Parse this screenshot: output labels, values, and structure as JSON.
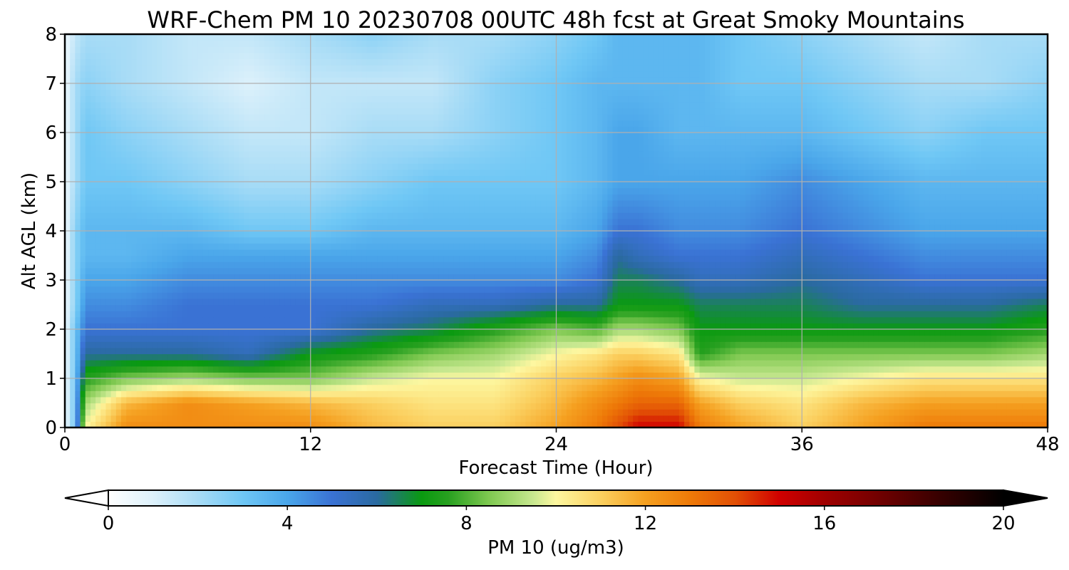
{
  "chart_data": {
    "type": "heatmap",
    "title": "WRF-Chem PM 10  20230708 00UTC 48h fcst at Great Smoky Mountains",
    "xlabel": "Forecast Time (Hour)",
    "ylabel": "Alt AGL (km)",
    "xlim": [
      0,
      48
    ],
    "ylim": [
      0,
      8
    ],
    "x_ticks": [
      0,
      12,
      24,
      36,
      48
    ],
    "y_ticks": [
      0,
      1,
      2,
      3,
      4,
      5,
      6,
      7,
      8
    ],
    "grid": true,
    "x_hours": [
      0,
      0.5,
      1,
      3,
      6,
      9,
      12,
      15,
      18,
      21,
      24,
      26,
      27,
      28,
      30,
      31,
      33,
      36,
      39,
      42,
      45,
      48
    ],
    "y_km": [
      0,
      0.5,
      1,
      1.5,
      2,
      2.5,
      3,
      3.5,
      4,
      5,
      6,
      7,
      8
    ],
    "values_ug_m3": [
      [
        0.5,
        3,
        10,
        12.5,
        12.5,
        12.5,
        12.5,
        11.5,
        11,
        11,
        12,
        13,
        14,
        15,
        15,
        13,
        12,
        11,
        12,
        13,
        13,
        13
      ],
      [
        0.5,
        3,
        9,
        11.5,
        12.5,
        12,
        11.5,
        11,
        10.5,
        10.5,
        11.5,
        12.5,
        13,
        13.5,
        13.5,
        12,
        11,
        10.5,
        11.5,
        12,
        12,
        12
      ],
      [
        0.5,
        3,
        7.5,
        8.5,
        9,
        8.5,
        8.5,
        9.5,
        10,
        10,
        11,
        11.5,
        12,
        12.5,
        12,
        10,
        9.5,
        9.5,
        10,
        10.5,
        10.5,
        10.5
      ],
      [
        0.5,
        3,
        6,
        6,
        6,
        5.5,
        7,
        7.5,
        8.5,
        9,
        10,
        10.5,
        11,
        11,
        10.5,
        7.5,
        8.5,
        8.5,
        8.5,
        8.5,
        8.5,
        9
      ],
      [
        0.5,
        3,
        5,
        5,
        5,
        5,
        5,
        6,
        6.5,
        7.5,
        8.5,
        8,
        9,
        9,
        8.5,
        7,
        7,
        7,
        7,
        7,
        7,
        7.5
      ],
      [
        0.5,
        2.5,
        4.5,
        4.5,
        5,
        5,
        5,
        5,
        5.5,
        5.5,
        6,
        6,
        7,
        7,
        7,
        6.5,
        6.5,
        6.5,
        6,
        6,
        6,
        6.5
      ],
      [
        0.5,
        2.5,
        4,
        4,
        4.5,
        4.5,
        4.5,
        4.5,
        4.5,
        4.5,
        4.5,
        5,
        6.5,
        6.5,
        6,
        5.5,
        5.5,
        6,
        5.5,
        5,
        5,
        5
      ],
      [
        0.5,
        2.5,
        3.5,
        3.5,
        4,
        4,
        4,
        4,
        4,
        4,
        4,
        4.5,
        6,
        5.5,
        5,
        5,
        5,
        5.5,
        5,
        4.5,
        4.5,
        4.5
      ],
      [
        0.5,
        2.5,
        3.5,
        3.5,
        3.5,
        3,
        3,
        3.5,
        3.5,
        3.5,
        3.5,
        4,
        5,
        5,
        4.5,
        4.5,
        4.5,
        5,
        4.5,
        4,
        4,
        4
      ],
      [
        0.5,
        2,
        3,
        3,
        2.5,
        2,
        2,
        2.5,
        3,
        3,
        3,
        3.5,
        4,
        4,
        4,
        4,
        4,
        4.5,
        4,
        3.5,
        3.5,
        3.5
      ],
      [
        0.5,
        2,
        3,
        2.5,
        2,
        1.5,
        1.5,
        2,
        2,
        2.5,
        3,
        3.5,
        4,
        4,
        3.5,
        3.5,
        3.5,
        3.5,
        3,
        2.5,
        3,
        3
      ],
      [
        0.5,
        2,
        2.5,
        2,
        1.5,
        1,
        1.5,
        1.5,
        1.5,
        2.5,
        3,
        3.5,
        3.5,
        3.5,
        3.5,
        3.5,
        3,
        3,
        2.5,
        2,
        2,
        2.5
      ],
      [
        0.5,
        1.5,
        2,
        2,
        1.5,
        1.5,
        2,
        2.5,
        2,
        2,
        2.5,
        3,
        3.5,
        3.5,
        3.5,
        3.5,
        3,
        2.5,
        2,
        1.5,
        2,
        2
      ]
    ],
    "colorbar": {
      "label": "PM 10  (ug/m3)",
      "min": 0,
      "max": 20,
      "ticks": [
        0,
        4,
        8,
        12,
        16,
        20
      ],
      "extend": "both",
      "colors": [
        [
          0,
          "#ffffff"
        ],
        [
          1,
          "#ddf1fb"
        ],
        [
          2,
          "#a8dcf6"
        ],
        [
          3,
          "#6fc7f5"
        ],
        [
          4,
          "#4aa6ea"
        ],
        [
          5,
          "#3a72d4"
        ],
        [
          6,
          "#2a6aa0"
        ],
        [
          7,
          "#0a9a10"
        ],
        [
          7.6,
          "#28a020"
        ],
        [
          8.5,
          "#7ec850"
        ],
        [
          9.5,
          "#c8e890"
        ],
        [
          10,
          "#fdf7a0"
        ],
        [
          11,
          "#fbd060"
        ],
        [
          12,
          "#f5a020"
        ],
        [
          13,
          "#ee7a08"
        ],
        [
          14,
          "#e25005"
        ],
        [
          15,
          "#d00000"
        ],
        [
          16,
          "#a00000"
        ],
        [
          17,
          "#7a0000"
        ],
        [
          18.5,
          "#3a0000"
        ],
        [
          20,
          "#000000"
        ]
      ]
    }
  }
}
